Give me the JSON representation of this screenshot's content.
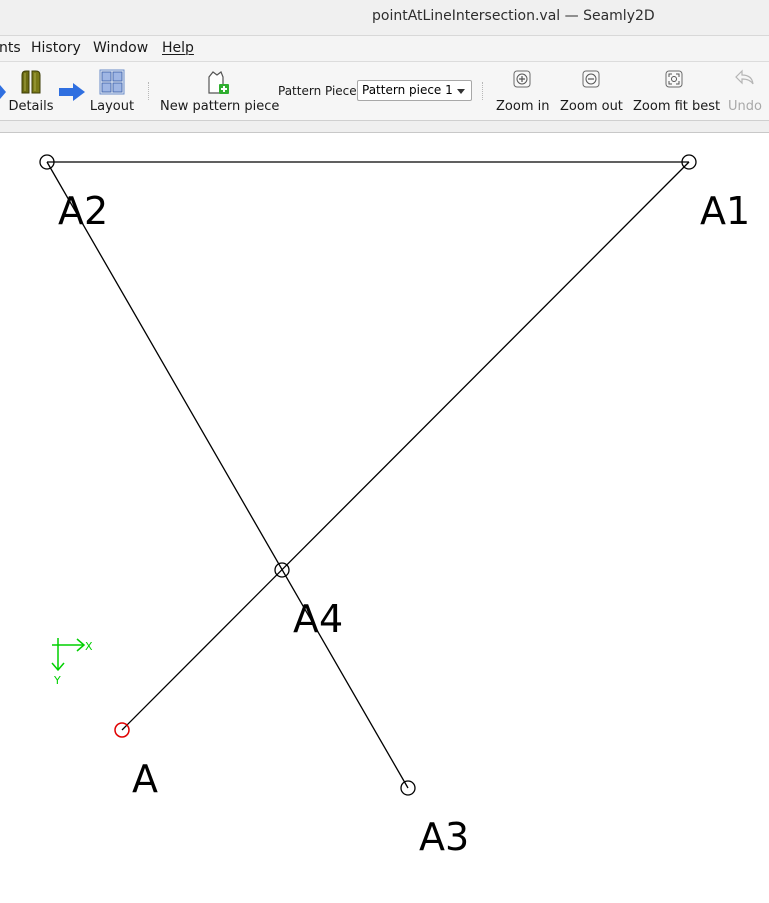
{
  "window": {
    "title": "pointAtLineIntersection.val — Seamly2D"
  },
  "menubar": {
    "items": [
      {
        "label": "nts"
      },
      {
        "label": "History"
      },
      {
        "label": "Window"
      },
      {
        "label": "Help"
      }
    ]
  },
  "toolbar": {
    "details_label": "Details",
    "layout_label": "Layout",
    "new_piece_label": "New pattern piece",
    "pattern_piece_label": "Pattern Piece:",
    "pattern_piece_value": "Pattern piece 1",
    "zoom_in_label": "Zoom in",
    "zoom_out_label": "Zoom out",
    "zoom_fit_label": "Zoom fit best",
    "undo_label": "Undo"
  },
  "canvas": {
    "points": [
      {
        "name": "A"
      },
      {
        "name": "A1"
      },
      {
        "name": "A2"
      },
      {
        "name": "A3"
      },
      {
        "name": "A4"
      }
    ],
    "axis": {
      "x_label": "X",
      "y_label": "Y"
    },
    "colors": {
      "line": "#000000",
      "selected_point": "#e00000",
      "axis": "#00d000"
    }
  }
}
